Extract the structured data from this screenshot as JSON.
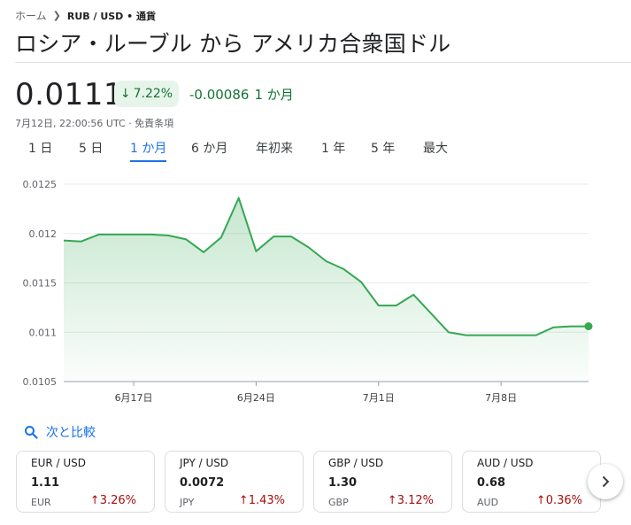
{
  "breadcrumb": {
    "home": "ホーム",
    "current": "RUB / USD • 通貨"
  },
  "title": "ロシア・ルーブル から アメリカ合衆国ドル",
  "quote": {
    "price": "0.0111",
    "change_pct": "7.22%",
    "change_abs": "-0.00086",
    "change_period": "1 か月",
    "timestamp": "7月12日, 22:00:56 UTC · 免責条項"
  },
  "ranges": [
    "1 日",
    "5 日",
    "1 か月",
    "6 か月",
    "年初来",
    "1 年",
    "5 年",
    "最大"
  ],
  "active_range": "1 か月",
  "compare_label": "次と比較",
  "colors": {
    "positive": "#137333",
    "line": "#34a853",
    "negative": "#a50e0e",
    "accent": "#1a73e8"
  },
  "chart_data": {
    "type": "area",
    "ylim": [
      0.0105,
      0.0125
    ],
    "y_ticks": [
      "0.0125",
      "0.012",
      "0.0115",
      "0.011",
      "0.0105"
    ],
    "x_ticks": [
      {
        "label": "6月17日",
        "x": "2024-06-17"
      },
      {
        "label": "6月24日",
        "x": "2024-06-24"
      },
      {
        "label": "7月1日",
        "x": "2024-07-01"
      },
      {
        "label": "7月8日",
        "x": "2024-07-08"
      }
    ],
    "x_range": [
      "2024-06-13",
      "2024-07-13"
    ],
    "series": [
      {
        "points": [
          [
            "2024-06-13",
            0.01193
          ],
          [
            "2024-06-14",
            0.01192
          ],
          [
            "2024-06-15",
            0.01199
          ],
          [
            "2024-06-16",
            0.01199
          ],
          [
            "2024-06-17",
            0.01199
          ],
          [
            "2024-06-18",
            0.01199
          ],
          [
            "2024-06-19",
            0.01198
          ],
          [
            "2024-06-20",
            0.01194
          ],
          [
            "2024-06-21",
            0.01181
          ],
          [
            "2024-06-22",
            0.01196
          ],
          [
            "2024-06-23",
            0.01236
          ],
          [
            "2024-06-24",
            0.01182
          ],
          [
            "2024-06-25",
            0.01197
          ],
          [
            "2024-06-26",
            0.01197
          ],
          [
            "2024-06-27",
            0.01186
          ],
          [
            "2024-06-28",
            0.01172
          ],
          [
            "2024-06-29",
            0.01164
          ],
          [
            "2024-06-30",
            0.01151
          ],
          [
            "2024-07-01",
            0.01127
          ],
          [
            "2024-07-02",
            0.01127
          ],
          [
            "2024-07-03",
            0.01138
          ],
          [
            "2024-07-04",
            0.01119
          ],
          [
            "2024-07-05",
            0.011
          ],
          [
            "2024-07-06",
            0.01097
          ],
          [
            "2024-07-07",
            0.01097
          ],
          [
            "2024-07-08",
            0.01097
          ],
          [
            "2024-07-09",
            0.01097
          ],
          [
            "2024-07-10",
            0.01097
          ],
          [
            "2024-07-11",
            0.01105
          ],
          [
            "2024-07-12",
            0.01106
          ],
          [
            "2024-07-13",
            0.01106
          ]
        ]
      }
    ]
  },
  "cards": [
    {
      "pair": "EUR / USD",
      "value": "1.11",
      "code": "EUR",
      "pct": "3.26%"
    },
    {
      "pair": "JPY / USD",
      "value": "0.0072",
      "code": "JPY",
      "pct": "1.43%"
    },
    {
      "pair": "GBP / USD",
      "value": "1.30",
      "code": "GBP",
      "pct": "3.12%"
    },
    {
      "pair": "AUD / USD",
      "value": "0.68",
      "code": "AUD",
      "pct": "0.36%"
    }
  ],
  "icons": {
    "compare": "search-icon",
    "next": "chevron-right-icon",
    "up": "arrow-up-icon",
    "down": "arrow-down-icon"
  }
}
